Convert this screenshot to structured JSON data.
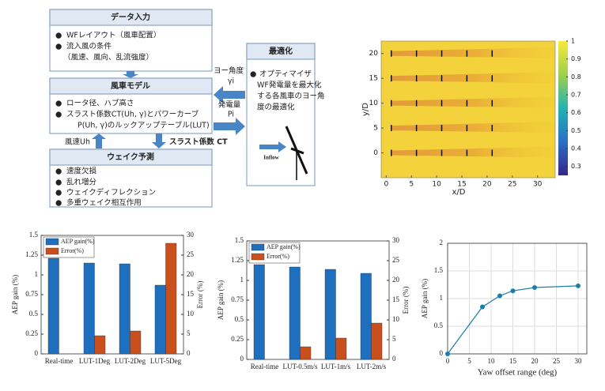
{
  "diagram": {
    "input": {
      "title": "データ入力",
      "items": [
        "WFレイアウト（風車配置）",
        "流入風の条件",
        "（風速、風向、乱流強度）"
      ]
    },
    "model": {
      "title": "風車モデル",
      "items": [
        "ロータ径、ハブ高さ",
        "スラスト係数CT(Uh, γ)とパワーカーブ",
        "P(Uh, γ)のルックアップテーブル(LUT)"
      ]
    },
    "wake": {
      "title": "ウェイク予測",
      "items": [
        "速度欠損",
        "乱れ増分",
        "ウェイクディフレクション",
        "多重ウェイク相互作用"
      ]
    },
    "optimization": {
      "title": "最適化",
      "items": [
        "オプティマイザ",
        "WF発電量を最大化",
        "する各風車のヨー角",
        "度の最適化"
      ],
      "inflow": "Inflow"
    },
    "arrows": {
      "yaw": "ヨー角度",
      "yaw_symbol": "γi",
      "power": "発電量",
      "power_symbol": "Pi",
      "wind_speed": "風速Uh",
      "thrust": "スラスト係数 CT"
    }
  },
  "chart_data": [
    {
      "type": "heatmap",
      "xlabel": "x/D",
      "ylabel": "y/D",
      "xlim": [
        -1,
        33.5
      ],
      "ylim": [
        -5,
        22.5
      ],
      "xticks": [
        0,
        5,
        10,
        15,
        20,
        25,
        30
      ],
      "yticks": [
        0,
        5,
        10,
        15,
        20
      ],
      "turbine_x": [
        1,
        6,
        11,
        16,
        21
      ],
      "turbine_y": [
        0,
        5,
        10,
        15,
        20
      ],
      "colorbar": {
        "lim": [
          0.25,
          1
        ],
        "ticks": [
          0.3,
          0.4,
          0.5,
          0.6,
          0.7,
          0.8,
          0.9,
          1
        ]
      }
    },
    {
      "type": "bar",
      "categories": [
        "Real-time",
        "LUT-1Deg",
        "LUT-2Deg",
        "LUT-5Deg"
      ],
      "ylabel": "AEP gain (%)",
      "y2label": "Error (%)",
      "ylim": [
        0,
        1.5
      ],
      "yticks": [
        0,
        0.25,
        0.5,
        0.75,
        1,
        1.25,
        1.5
      ],
      "y2lim": [
        0,
        30
      ],
      "y2ticks": [
        0,
        5,
        10,
        15,
        20,
        25,
        30
      ],
      "series": [
        {
          "name": "AEP gain(%)",
          "color": "#1f6fbf",
          "values": [
            1.21,
            1.15,
            1.14,
            0.87
          ]
        },
        {
          "name": "Error(%)",
          "color": "#c9501c",
          "axis": "y2",
          "values": [
            0,
            4.6,
            5.8,
            28
          ]
        }
      ]
    },
    {
      "type": "bar",
      "categories": [
        "Real-time",
        "LUT-0.5m/s",
        "LUT-1m/s",
        "LUT-2m/s"
      ],
      "ylabel": "AEP gain (%)",
      "y2label": "Error (%)",
      "ylim": [
        0,
        1.5
      ],
      "yticks": [
        0,
        0.25,
        0.5,
        0.75,
        1,
        1.25,
        1.5
      ],
      "y2lim": [
        0,
        30
      ],
      "y2ticks": [
        0,
        5,
        10,
        15,
        20,
        25,
        30
      ],
      "series": [
        {
          "name": "AEP gain(%)",
          "color": "#1f6fbf",
          "values": [
            1.2,
            1.17,
            1.14,
            1.09
          ]
        },
        {
          "name": "Error(%)",
          "color": "#c9501c",
          "axis": "y2",
          "values": [
            0,
            3.2,
            5.4,
            9.2
          ]
        }
      ]
    },
    {
      "type": "line",
      "xlabel": "Yaw offset range (deg)",
      "ylabel": "AEP gain (%)",
      "x": [
        0,
        8,
        12,
        15,
        20,
        30
      ],
      "values": [
        0,
        0.85,
        1.05,
        1.14,
        1.2,
        1.23
      ],
      "color": "#1a7fa8",
      "xlim": [
        0,
        32
      ],
      "xticks": [
        0,
        5,
        10,
        15,
        20,
        25,
        30
      ],
      "ylim": [
        0,
        2
      ],
      "yticks": [
        0,
        0.5,
        1,
        1.5,
        2
      ],
      "grid": true
    }
  ]
}
